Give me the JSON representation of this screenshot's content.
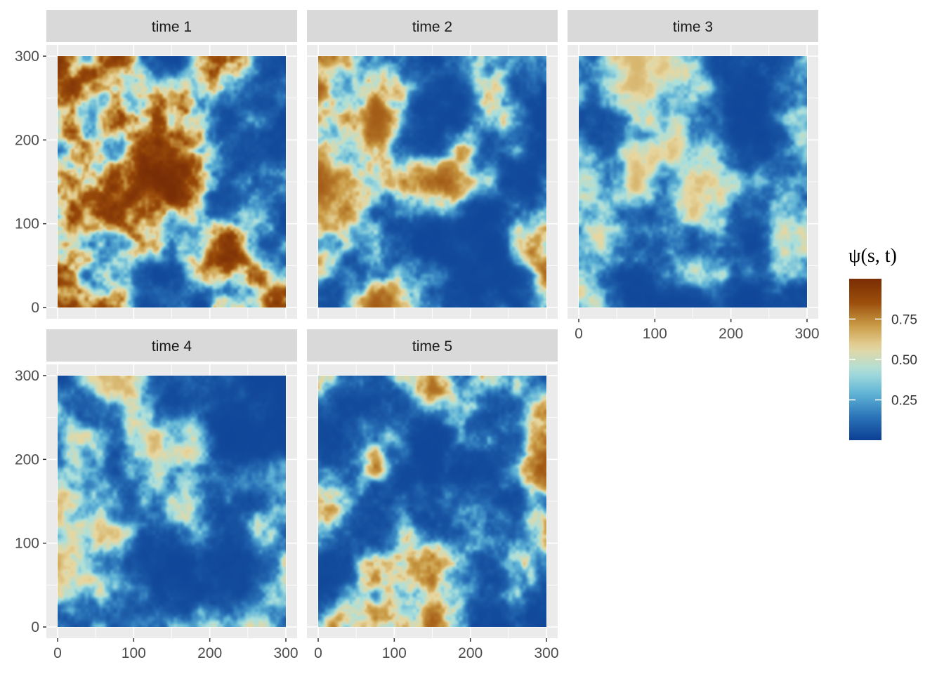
{
  "chart_data": {
    "type": "heatmap",
    "facet_layout": {
      "ncol": 3,
      "nrow": 2
    },
    "panels": [
      {
        "label": "time 1",
        "seed": 11,
        "hot": 1.0
      },
      {
        "label": "time 2",
        "seed": 23,
        "hot": 0.72
      },
      {
        "label": "time 3",
        "seed": 37,
        "hot": 0.45
      },
      {
        "label": "time 4",
        "seed": 41,
        "hot": 0.5
      },
      {
        "label": "time 5",
        "seed": 59,
        "hot": 0.75
      }
    ],
    "x_ticks": [
      0,
      100,
      200,
      300
    ],
    "y_ticks": [
      0,
      100,
      200,
      300
    ],
    "xlim": [
      0,
      300
    ],
    "ylim": [
      0,
      300
    ],
    "grid": true,
    "legend": {
      "title_symbol": "ψ",
      "title_args": "(s, t)",
      "position": "right",
      "range": [
        0,
        1
      ],
      "ticks": [
        {
          "value": 0.25,
          "label": "0.25"
        },
        {
          "value": 0.5,
          "label": "0.50"
        },
        {
          "value": 0.75,
          "label": "0.75"
        }
      ]
    },
    "colormap": [
      "#0c3f94",
      "#2a73b8",
      "#5fb3d6",
      "#abe0dd",
      "#e8d7a0",
      "#c99a44",
      "#9a4c0a",
      "#7a2e05"
    ]
  }
}
